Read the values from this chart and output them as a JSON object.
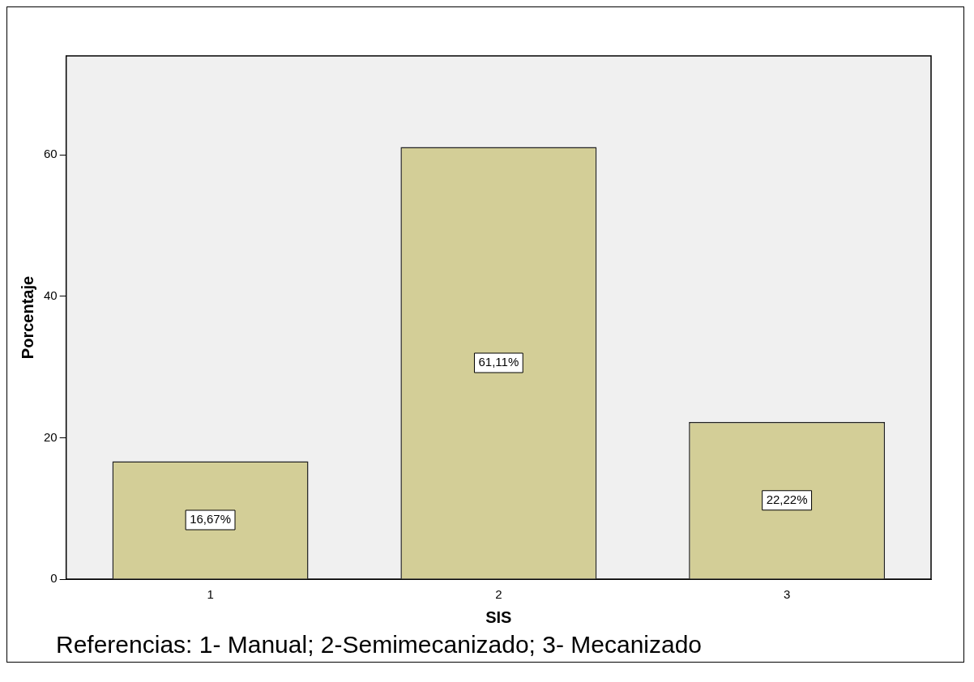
{
  "chart_data": {
    "type": "bar",
    "xlabel": "SIS",
    "ylabel": "Porcentaje",
    "categories": [
      "1",
      "2",
      "3"
    ],
    "values": [
      16.67,
      61.11,
      22.22
    ],
    "value_labels": [
      "16,67%",
      "61,11%",
      "22,22%"
    ],
    "color": "#d3ce97",
    "ylim": [
      0,
      74
    ],
    "yticks": [
      0,
      20,
      40,
      60
    ],
    "grid": false,
    "legend": false,
    "annotations": [
      "Referencias: 1- Manual; 2-Semimecanizado; 3- Mecanizado"
    ]
  }
}
